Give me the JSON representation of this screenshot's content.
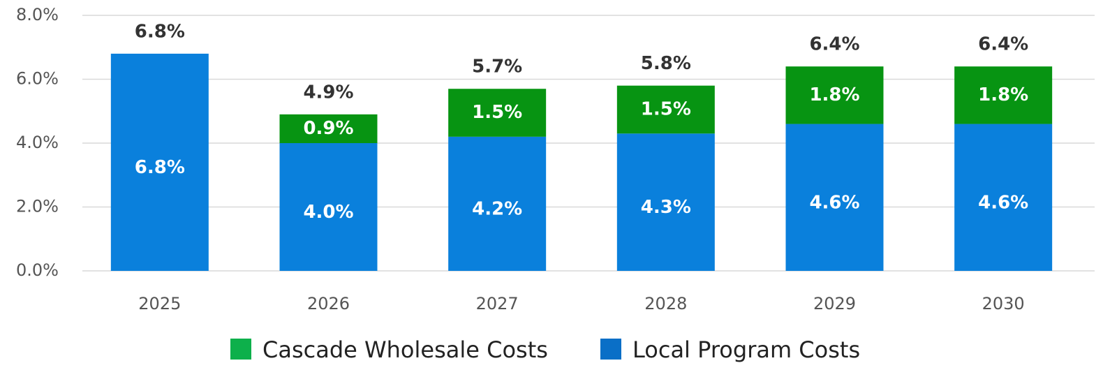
{
  "chart_data": {
    "type": "stacked_bar",
    "categories": [
      "2025",
      "2026",
      "2027",
      "2028",
      "2029",
      "2030"
    ],
    "series": [
      {
        "name": "Local Program Costs",
        "color": "#0a80dc",
        "values": [
          6.8,
          4.0,
          4.2,
          4.3,
          4.6,
          4.6
        ],
        "value_labels": [
          "6.8%",
          "4.0%",
          "4.2%",
          "4.3%",
          "4.6%",
          "4.6%"
        ]
      },
      {
        "name": "Cascade Wholesale Costs",
        "color": "#079412",
        "values": [
          null,
          0.9,
          1.5,
          1.5,
          1.8,
          1.8
        ],
        "value_labels": [
          null,
          "0.9%",
          "1.5%",
          "1.5%",
          "1.8%",
          "1.8%"
        ]
      }
    ],
    "totals": [
      6.8,
      4.9,
      5.7,
      5.8,
      6.4,
      6.4
    ],
    "total_labels": [
      "6.8%",
      "4.9%",
      "5.7%",
      "5.8%",
      "6.4%",
      "6.4%"
    ],
    "ylim": [
      0,
      8
    ],
    "yticks": [
      {
        "value": 0,
        "label": "0.0%"
      },
      {
        "value": 2,
        "label": "2.0%"
      },
      {
        "value": 4,
        "label": "4.0%"
      },
      {
        "value": 6,
        "label": "6.0%"
      },
      {
        "value": 8,
        "label": "8.0%"
      }
    ],
    "grid": true,
    "legend": "bottom"
  }
}
